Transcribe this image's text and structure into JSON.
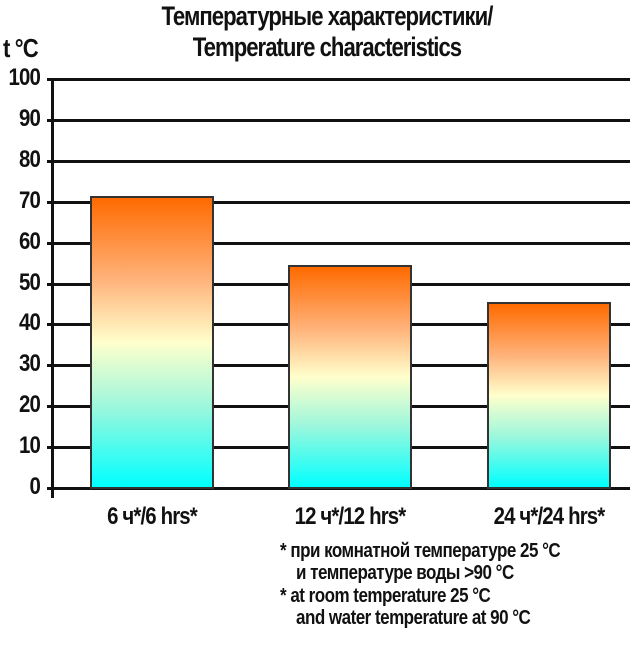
{
  "title": {
    "line1": "Температурные характеристики/",
    "line2": "Temperature characteristics"
  },
  "y_unit": "t °C",
  "y_ticks": [
    "100",
    "90",
    "80",
    "70",
    "60",
    "50",
    "40",
    "30",
    "20",
    "10",
    "0"
  ],
  "x_labels": [
    "6 ч*/6 hrs*",
    "12 ч*/12 hrs*",
    "24 ч*/24 hrs*"
  ],
  "notes": {
    "ru_line1": "* при комнатной температуре 25 °C",
    "ru_line2": "и температуре воды >90 °C",
    "en_line1": "* at room temperature 25 °C",
    "en_line2": "and water temperature at 90 °C"
  },
  "colors": {
    "bar_top": "#ff6a00",
    "bar_middle": "#ffffcc",
    "bar_bottom": "#00ffff",
    "axis": "#111111"
  },
  "chart_data": {
    "type": "bar",
    "title": "Температурные характеристики/ Temperature characteristics",
    "xlabel": "",
    "ylabel": "t °C",
    "categories": [
      "6 ч*/6 hrs*",
      "12 ч*/12 hrs*",
      "24 ч*/24 hrs*"
    ],
    "values": [
      71.5,
      54.5,
      45.5
    ],
    "ylim": [
      0,
      100
    ],
    "yticks": [
      0,
      10,
      20,
      30,
      40,
      50,
      60,
      70,
      80,
      90,
      100
    ],
    "grid": true,
    "legend": null,
    "annotations": [
      "* при комнатной температуре 25 °C и температуре воды >90 °C",
      "* at room temperature 25 °C and water temperature at 90 °C"
    ]
  }
}
